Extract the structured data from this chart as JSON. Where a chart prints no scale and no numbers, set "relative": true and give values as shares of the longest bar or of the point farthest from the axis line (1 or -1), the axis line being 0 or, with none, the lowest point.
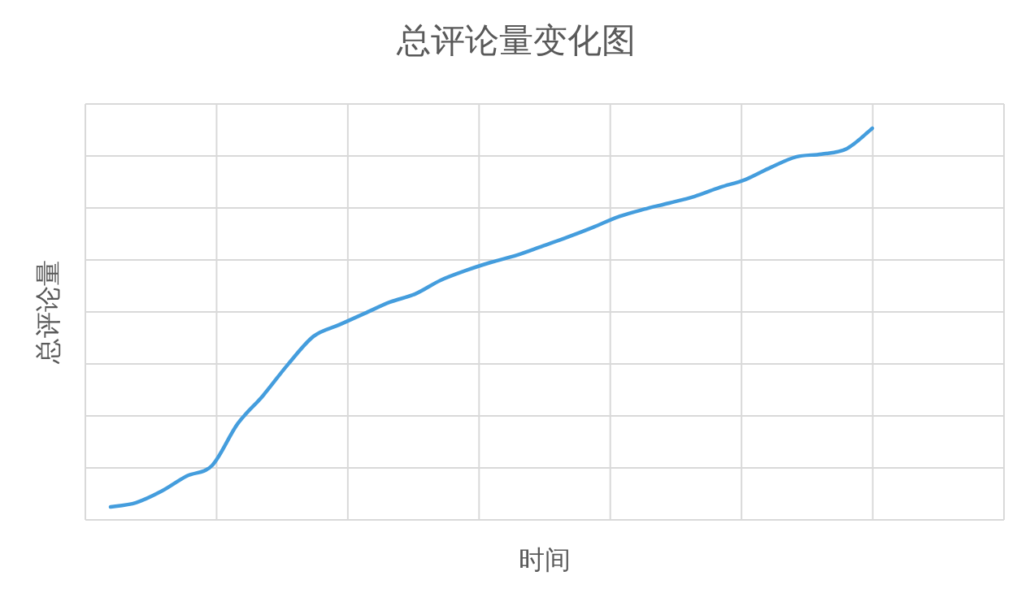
{
  "chart_data": {
    "type": "line",
    "title": "总评论量变化图",
    "xlabel": "时间",
    "ylabel": "总评论量",
    "relative": true,
    "grid": true,
    "marker": "none",
    "line_style": "solid",
    "categories": [
      null,
      null,
      null,
      null,
      null,
      null,
      null,
      null,
      null,
      null,
      null,
      null,
      null,
      null,
      null,
      null,
      null,
      null,
      null,
      null,
      null,
      null,
      null,
      null,
      null,
      null,
      null,
      null,
      null,
      null,
      null
    ],
    "series": [
      {
        "color": "#449ddd",
        "values": [
          0.033,
          0.044,
          0.073,
          0.112,
          0.139,
          0.245,
          0.317,
          0.398,
          0.469,
          0.498,
          0.527,
          0.556,
          0.577,
          0.612,
          0.637,
          0.658,
          0.676,
          0.699,
          0.722,
          0.747,
          0.774,
          0.793,
          0.809,
          0.826,
          0.849,
          0.869,
          0.9,
          0.927,
          0.934,
          0.948,
          1
        ]
      }
    ]
  }
}
